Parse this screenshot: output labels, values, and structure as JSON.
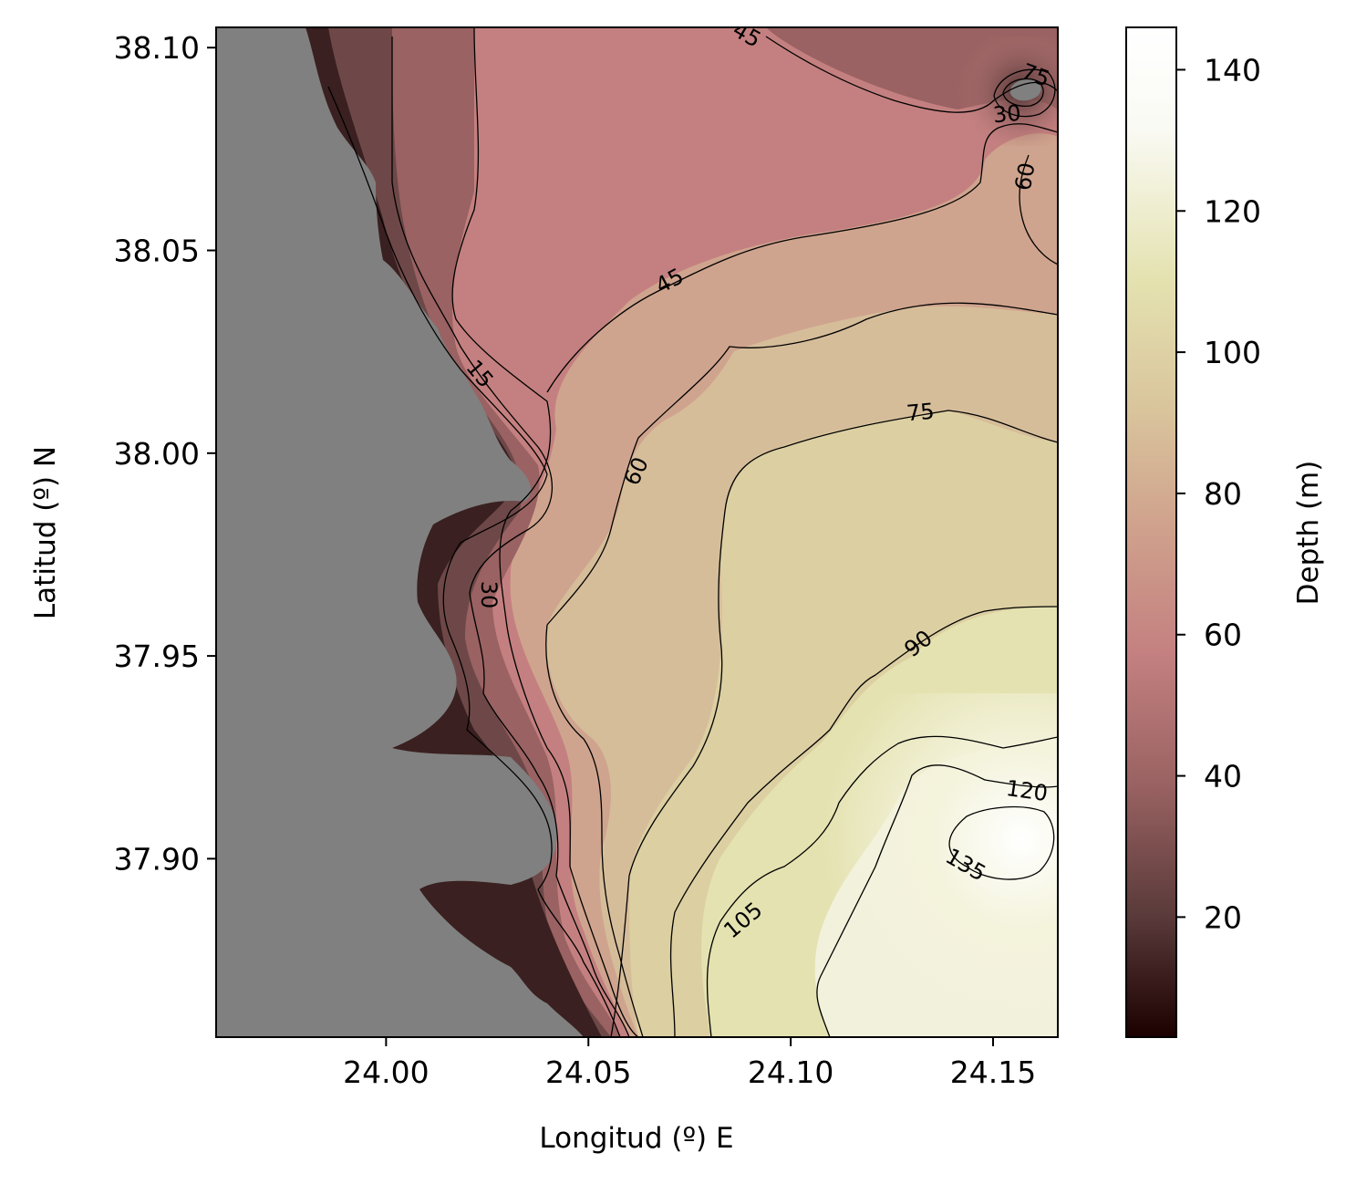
{
  "map": {
    "xlabel": "Longitud (º) E",
    "ylabel": "Latitud (º) N",
    "x_ticks": [
      {
        "value": 24.0,
        "label": "24.00"
      },
      {
        "value": 24.05,
        "label": "24.05"
      },
      {
        "value": 24.1,
        "label": "24.10"
      },
      {
        "value": 24.15,
        "label": "24.15"
      }
    ],
    "y_ticks": [
      {
        "value": 38.1,
        "label": "38.10"
      },
      {
        "value": 38.05,
        "label": "38.05"
      },
      {
        "value": 38.0,
        "label": "38.00"
      },
      {
        "value": 37.95,
        "label": "37.95"
      },
      {
        "value": 37.9,
        "label": "37.90"
      }
    ],
    "xlim": [
      23.958,
      24.166
    ],
    "ylim": [
      37.856,
      38.105
    ],
    "land_color": "#808080",
    "contour_color": "#000000",
    "contour_levels": [
      15,
      30,
      45,
      60,
      75,
      90,
      105,
      120,
      135
    ],
    "contour_labels": [
      {
        "text": "15"
      },
      {
        "text": "30"
      },
      {
        "text": "45"
      },
      {
        "text": "45"
      },
      {
        "text": "60"
      },
      {
        "text": "60"
      },
      {
        "text": "75"
      },
      {
        "text": "75"
      },
      {
        "text": "30"
      },
      {
        "text": "90"
      },
      {
        "text": "105"
      },
      {
        "text": "120"
      },
      {
        "text": "135"
      }
    ]
  },
  "colorbar": {
    "label": "Depth (m)",
    "range": [
      3,
      146
    ],
    "ticks": [
      {
        "value": 20,
        "label": "20"
      },
      {
        "value": 40,
        "label": "40"
      },
      {
        "value": 60,
        "label": "60"
      },
      {
        "value": 80,
        "label": "80"
      },
      {
        "value": 100,
        "label": "100"
      },
      {
        "value": 120,
        "label": "120"
      },
      {
        "value": 140,
        "label": "140"
      }
    ],
    "colormap": [
      "#1c0000",
      "#5a3a3a",
      "#9a6262",
      "#c48080",
      "#cfa08c",
      "#d9c49c",
      "#e4e2b0",
      "#fafaf4",
      "#ffffff"
    ]
  }
}
